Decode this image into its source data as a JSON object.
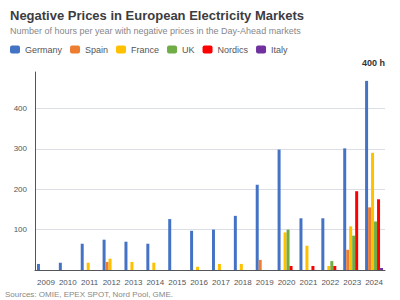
{
  "chart_data": {
    "type": "bar",
    "title": "Negative Prices in European Electricity Markets",
    "subtitle": "Number of hours per year with negative prices in the Day-Ahead markets",
    "annotations": [
      "400 h"
    ],
    "source": "Sources: OMIE, EPEX SPOT, Nord Pool, GME.",
    "categories": [
      "2009",
      "2010",
      "2011",
      "2012",
      "2013",
      "2014",
      "2015",
      "2016",
      "2017",
      "2018",
      "2019",
      "2020",
      "2021",
      "2022",
      "2023",
      "2024"
    ],
    "series": [
      {
        "name": "Germany",
        "color": "#4472C4",
        "values": [
          15,
          18,
          65,
          75,
          70,
          65,
          126,
          97,
          100,
          134,
          211,
          298,
          128,
          128,
          301,
          468
        ]
      },
      {
        "name": "Spain",
        "color": "#ED7D31",
        "values": [
          0,
          0,
          0,
          20,
          0,
          0,
          0,
          0,
          0,
          0,
          25,
          0,
          0,
          0,
          50,
          155
        ]
      },
      {
        "name": "France",
        "color": "#FFC000",
        "values": [
          0,
          0,
          18,
          28,
          20,
          18,
          0,
          8,
          15,
          15,
          0,
          93,
          60,
          10,
          108,
          290
        ]
      },
      {
        "name": "UK",
        "color": "#70AD47",
        "values": [
          0,
          0,
          0,
          0,
          0,
          0,
          0,
          0,
          0,
          0,
          0,
          100,
          0,
          22,
          85,
          120
        ]
      },
      {
        "name": "Nordics",
        "color": "#FF0000",
        "values": [
          0,
          0,
          0,
          0,
          0,
          0,
          0,
          0,
          0,
          0,
          0,
          10,
          10,
          10,
          195,
          175
        ]
      },
      {
        "name": "Italy",
        "color": "#7030A0",
        "values": [
          0,
          0,
          0,
          0,
          0,
          0,
          0,
          0,
          0,
          0,
          0,
          0,
          0,
          0,
          0,
          5
        ]
      }
    ],
    "ylim": [
      0,
      490
    ],
    "yticks": [
      100,
      200,
      300,
      400
    ],
    "grid": true,
    "legend": "top-left"
  }
}
